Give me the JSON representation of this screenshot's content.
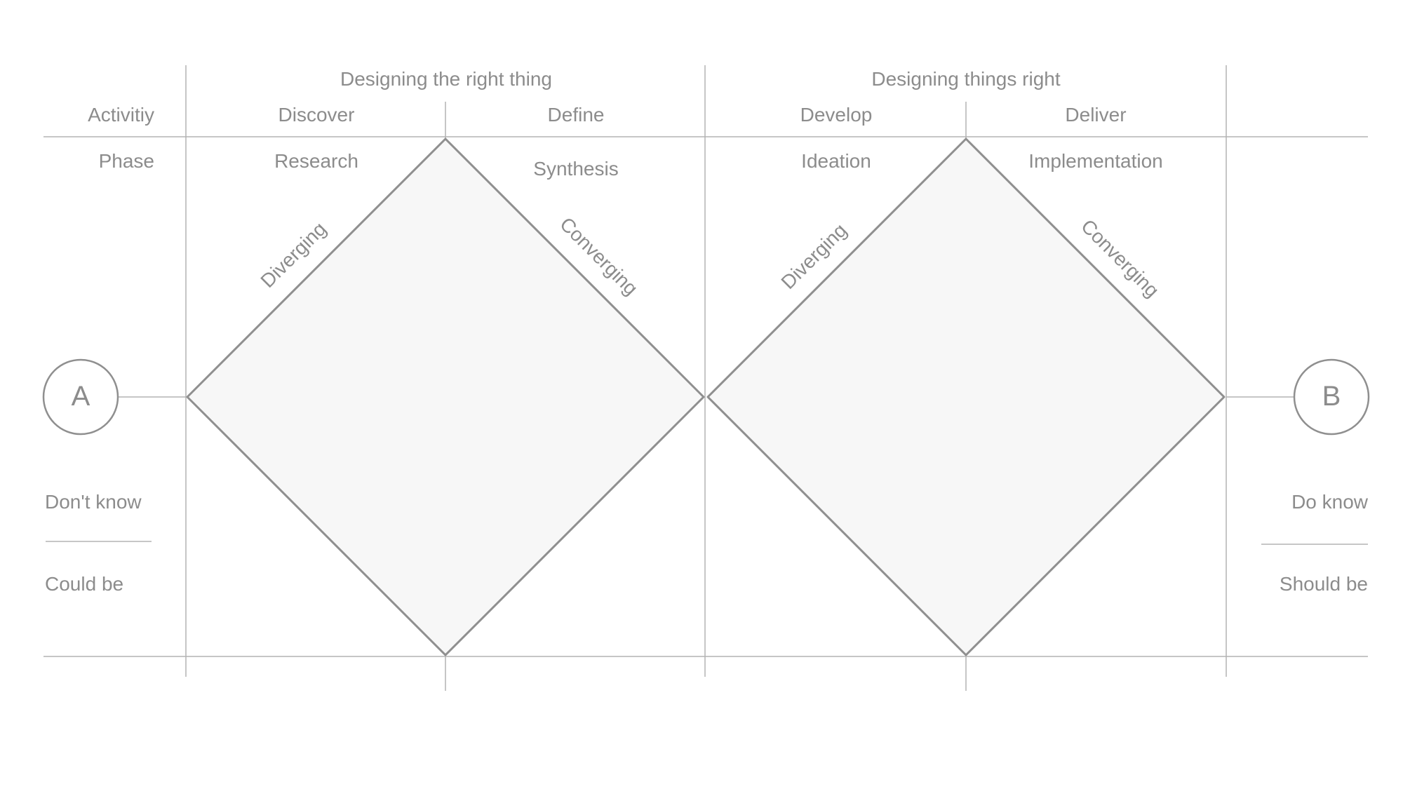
{
  "colors": {
    "line": "#b3b3b3",
    "diamond_stroke": "#8f8f8f",
    "diamond_fill": "#f7f7f7",
    "text": "#8c8c8c",
    "background": "#ffffff"
  },
  "headers": {
    "left_group": "Designing the right thing",
    "right_group": "Designing things right"
  },
  "row_labels": {
    "activity": "Activitiy",
    "phase": "Phase"
  },
  "activities": [
    "Discover",
    "Define",
    "Develop",
    "Deliver"
  ],
  "phases": [
    "Research",
    "Synthesis",
    "Ideation",
    "Implementation"
  ],
  "edge_labels": {
    "left_diamond_diverging": "Diverging",
    "left_diamond_converging": "Converging",
    "right_diamond_diverging": "Diverging",
    "right_diamond_converging": "Converging"
  },
  "start": {
    "letter": "A",
    "top_text": "Don't know",
    "bottom_text": "Could be"
  },
  "end": {
    "letter": "B",
    "top_text": "Do know",
    "bottom_text": "Should be"
  }
}
